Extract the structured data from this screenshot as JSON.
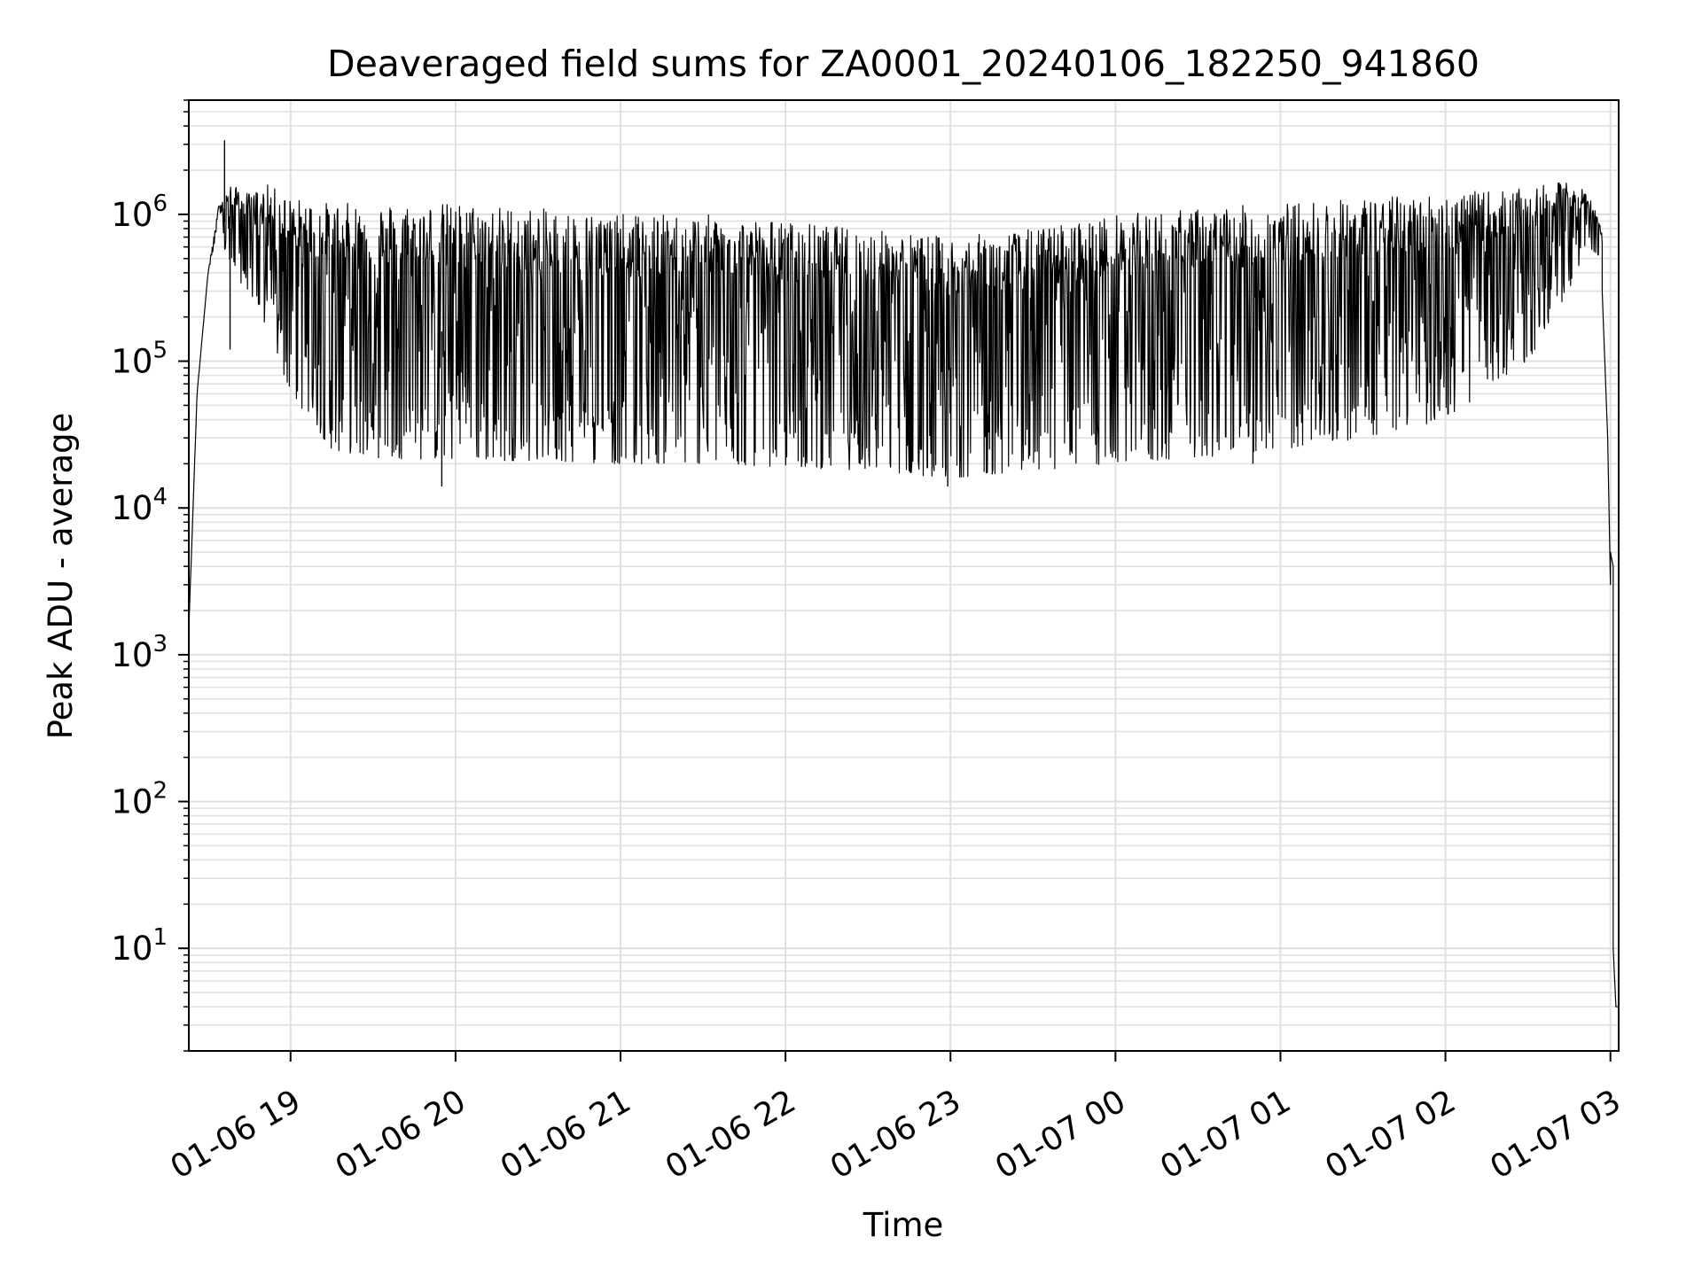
{
  "chart_data": {
    "type": "line",
    "title": "Deaveraged field sums for ZA0001_20240106_182250_941860",
    "xlabel": "Time",
    "ylabel": "Peak ADU - average",
    "yscale": "log",
    "grid": true,
    "line_color": "#000000",
    "grid_color": "#e0e0e0",
    "xlim": [
      "2024-01-06 18:23",
      "2024-01-07 03:03"
    ],
    "ylim": [
      2,
      6000000
    ],
    "x_ticks": [
      {
        "value": "2024-01-06 19:00",
        "label": "01-06 19"
      },
      {
        "value": "2024-01-06 20:00",
        "label": "01-06 20"
      },
      {
        "value": "2024-01-06 21:00",
        "label": "01-06 21"
      },
      {
        "value": "2024-01-06 22:00",
        "label": "01-06 22"
      },
      {
        "value": "2024-01-06 23:00",
        "label": "01-06 23"
      },
      {
        "value": "2024-01-07 00:00",
        "label": "01-07 00"
      },
      {
        "value": "2024-01-07 01:00",
        "label": "01-07 01"
      },
      {
        "value": "2024-01-07 02:00",
        "label": "01-07 02"
      },
      {
        "value": "2024-01-07 03:00",
        "label": "01-07 03"
      }
    ],
    "y_ticks": [
      {
        "value": 10,
        "base": "10",
        "exp": "1"
      },
      {
        "value": 100,
        "base": "10",
        "exp": "2"
      },
      {
        "value": 1000,
        "base": "10",
        "exp": "3"
      },
      {
        "value": 10000,
        "base": "10",
        "exp": "4"
      },
      {
        "value": 100000,
        "base": "10",
        "exp": "5"
      },
      {
        "value": 1000000,
        "base": "10",
        "exp": "6"
      }
    ],
    "series": [
      {
        "envelope": {
          "time": [
            "2024-01-06 18:23",
            "2024-01-06 18:26",
            "2024-01-06 18:30",
            "2024-01-06 18:34",
            "2024-01-06 18:38",
            "2024-01-06 18:45",
            "2024-01-06 18:52",
            "2024-01-06 19:00",
            "2024-01-06 19:15",
            "2024-01-06 19:30",
            "2024-01-06 20:00",
            "2024-01-06 20:30",
            "2024-01-06 21:00",
            "2024-01-06 21:30",
            "2024-01-06 22:00",
            "2024-01-06 22:30",
            "2024-01-06 23:00",
            "2024-01-06 23:30",
            "2024-01-07 00:00",
            "2024-01-07 00:30",
            "2024-01-07 01:00",
            "2024-01-07 01:30",
            "2024-01-07 02:00",
            "2024-01-07 02:30",
            "2024-01-07 02:45",
            "2024-01-07 02:52",
            "2024-01-07 02:57"
          ],
          "upper": [
            1500,
            60000,
            400000,
            1200000,
            1600000,
            1400000,
            1600000,
            1300000,
            1200000,
            1200000,
            1200000,
            1100000,
            1000000,
            1000000,
            900000,
            800000,
            700000,
            800000,
            1000000,
            1100000,
            1200000,
            1300000,
            1400000,
            1500000,
            1700000,
            1400000,
            800000
          ],
          "lower": [
            1500,
            60000,
            400000,
            800000,
            400000,
            300000,
            150000,
            60000,
            25000,
            22000,
            21000,
            21000,
            20000,
            20000,
            19000,
            18000,
            16000,
            18000,
            20000,
            22000,
            25000,
            30000,
            40000,
            100000,
            300000,
            600000,
            500000
          ]
        },
        "tail": {
          "time": [
            "2024-01-07 02:57",
            "2024-01-07 02:59",
            "2024-01-07 03:00",
            "2024-01-07 03:00",
            "2024-01-07 03:01",
            "2024-01-07 03:01",
            "2024-01-07 03:01",
            "2024-01-07 03:02",
            "2024-01-07 03:02",
            "2024-01-07 03:03"
          ],
          "values": [
            300000,
            30000,
            3000,
            5000,
            4000,
            1000,
            10,
            4,
            4,
            4
          ]
        },
        "spikes": [
          {
            "time": "2024-01-06 18:36",
            "value": 3200000
          },
          {
            "time": "2024-01-06 18:38",
            "value": 120000
          },
          {
            "time": "2024-01-06 19:55",
            "value": 14000
          },
          {
            "time": "2024-01-06 22:59",
            "value": 14000
          },
          {
            "time": "2024-01-07 00:50",
            "value": 20000
          }
        ]
      }
    ]
  }
}
